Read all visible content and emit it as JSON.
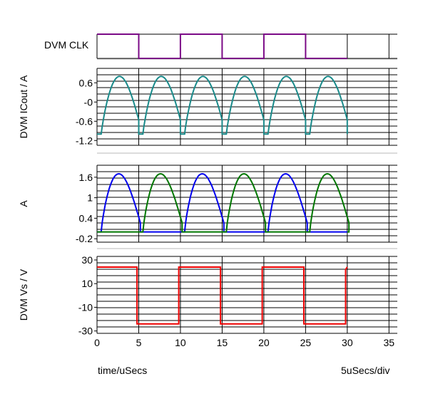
{
  "footer": {
    "xlabel": "time/uSecs",
    "scale": "5uSecs/div"
  },
  "chart_data": [
    {
      "type": "line",
      "panel": "clk",
      "ylabel": "DVM CLK",
      "ylim": [
        0,
        1
      ],
      "grid": true,
      "series": [
        {
          "name": "DVM CLK",
          "color": "#7b0a87",
          "points": [
            [
              0,
              1
            ],
            [
              5,
              1
            ],
            [
              5,
              0
            ],
            [
              10,
              0
            ],
            [
              10,
              1
            ],
            [
              15,
              1
            ],
            [
              15,
              0
            ],
            [
              20,
              0
            ],
            [
              20,
              1
            ],
            [
              25,
              1
            ],
            [
              25,
              0
            ],
            [
              30,
              0
            ]
          ]
        }
      ]
    },
    {
      "type": "line",
      "panel": "icout",
      "ylabel": "DVM ICout / A",
      "yticks": [
        "0.6",
        "-0",
        "-0.6",
        "-1.2"
      ],
      "ytick_values": [
        0.6,
        0,
        -0.6,
        -1.2
      ],
      "ylim": [
        -1.35,
        1.05
      ],
      "grid": true,
      "series": [
        {
          "color": "#1a8a8a",
          "shape": "half-sine",
          "period": 5,
          "cycles": 6,
          "rise_start": 0.5,
          "low": -1.0,
          "high": 0.8,
          "peak_at": 3.5
        }
      ]
    },
    {
      "type": "line",
      "panel": "currents",
      "ylabel": "A",
      "yticks": [
        "1.6",
        "1",
        "0.4",
        "-0.2"
      ],
      "ytick_values": [
        1.6,
        1,
        0.4,
        -0.2
      ],
      "ylim": [
        -0.3,
        1.95
      ],
      "grid": true,
      "series": [
        {
          "color": "#0000ee",
          "shape": "half-sine",
          "pulse_starts": [
            0.5,
            10.5,
            20.5
          ],
          "width": 4.7,
          "peak": 1.7,
          "base": 0
        },
        {
          "color": "#007700",
          "shape": "half-sine",
          "pulse_starts": [
            5.5,
            15.5,
            25.5
          ],
          "width": 4.7,
          "peak": 1.7,
          "base": 0
        }
      ]
    },
    {
      "type": "line",
      "panel": "vs",
      "ylabel": "DVM Vs / V",
      "xlabel": "time/uSecs",
      "xticks": [
        "0",
        "5",
        "10",
        "15",
        "20",
        "25",
        "30",
        "35"
      ],
      "xlim": [
        0,
        36
      ],
      "yticks": [
        "30",
        "10",
        "-10",
        "-30"
      ],
      "ytick_values": [
        30,
        10,
        -10,
        -30
      ],
      "ylim": [
        -32,
        33
      ],
      "grid": true,
      "series": [
        {
          "color": "#ee0000",
          "points": [
            [
              0,
              24
            ],
            [
              4.8,
              24
            ],
            [
              4.8,
              -24
            ],
            [
              9.8,
              -24
            ],
            [
              9.8,
              24
            ],
            [
              14.8,
              24
            ],
            [
              14.8,
              -24
            ],
            [
              19.8,
              -24
            ],
            [
              19.8,
              24
            ],
            [
              24.8,
              24
            ],
            [
              24.8,
              -24
            ],
            [
              29.8,
              -24
            ],
            [
              29.8,
              22
            ],
            [
              30,
              24
            ]
          ]
        }
      ]
    }
  ]
}
